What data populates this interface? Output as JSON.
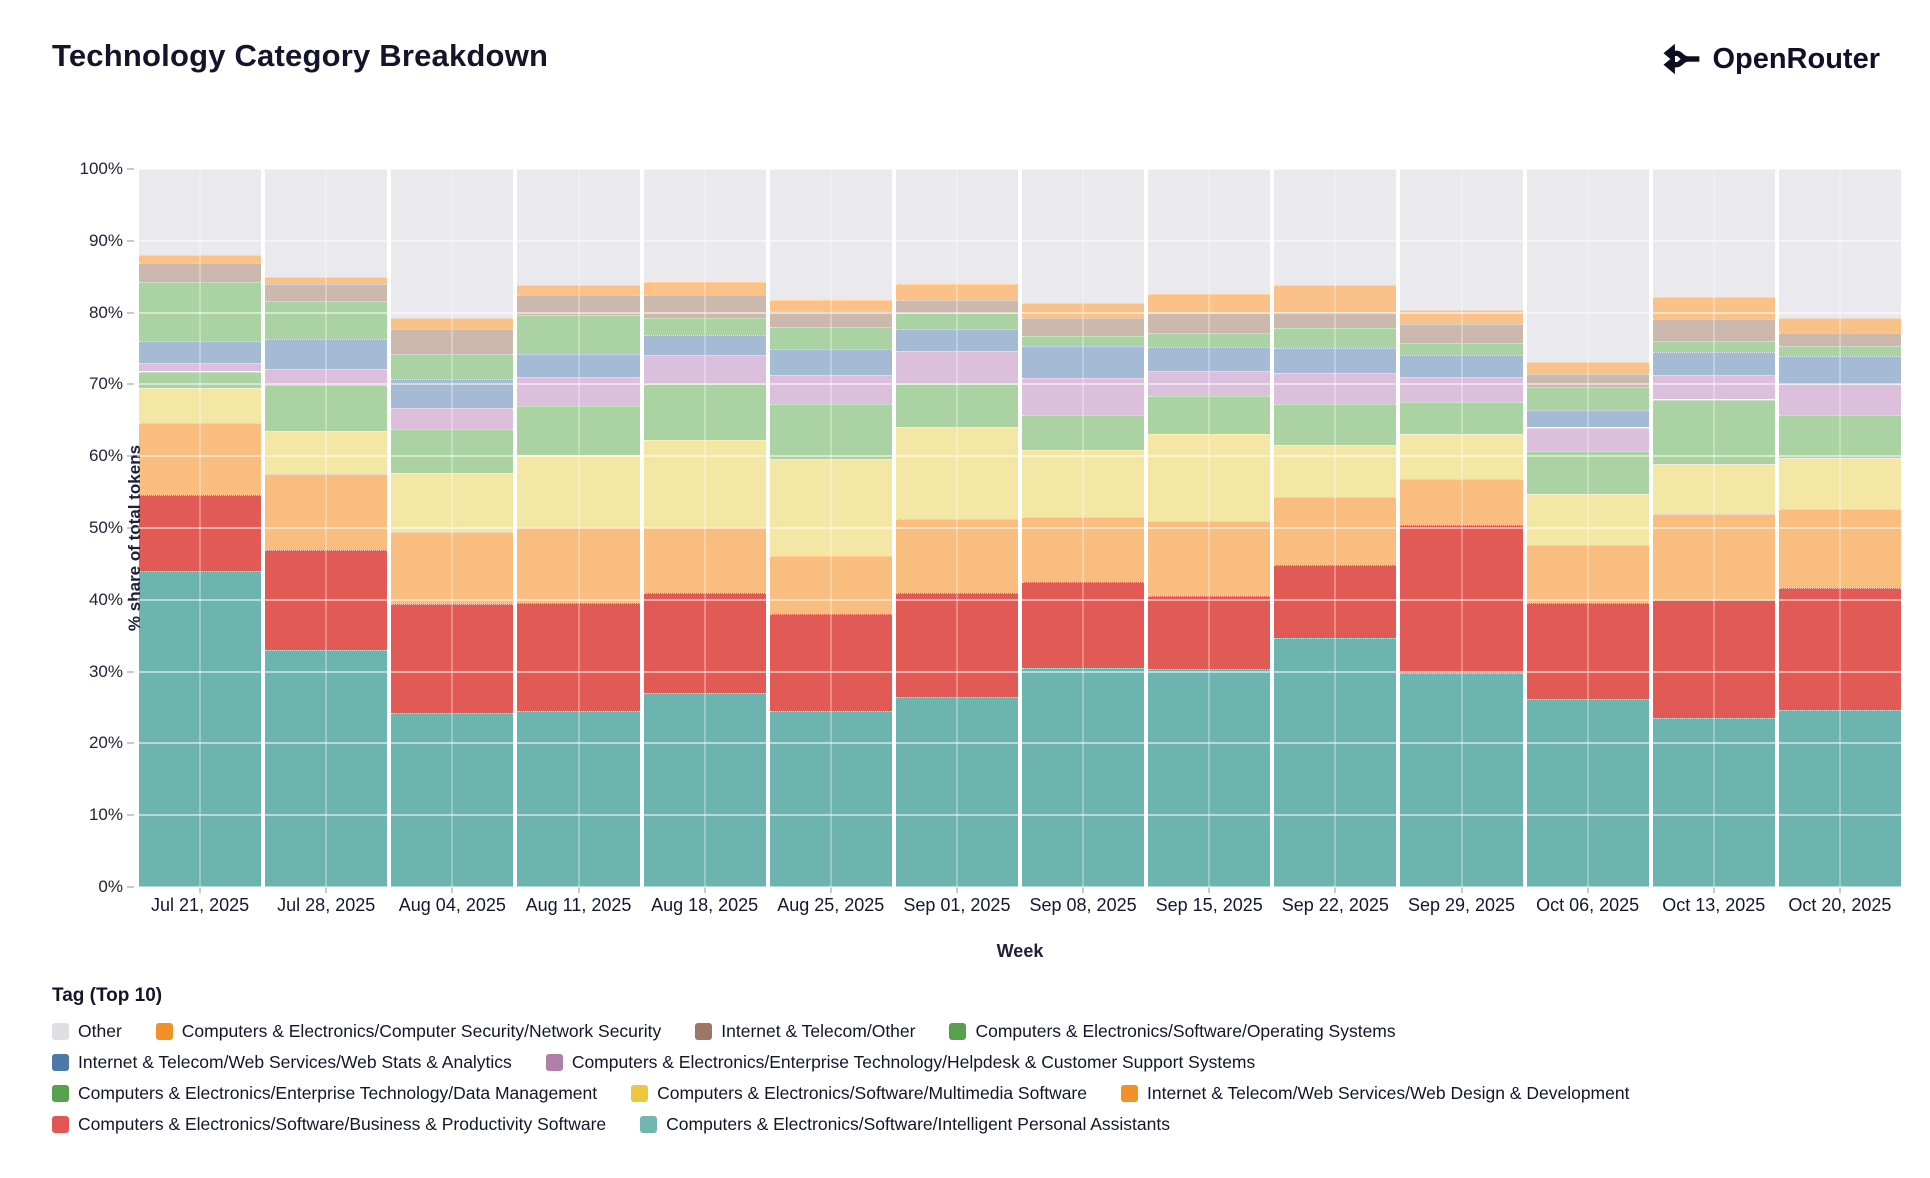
{
  "header": {
    "title": "Technology Category Breakdown",
    "brand": "OpenRouter",
    "brand_color": "#10102a"
  },
  "chart_data": {
    "type": "bar",
    "stacked": true,
    "units": "percent",
    "title": "Technology Category Breakdown",
    "xlabel": "Week",
    "ylabel": "% share of total tokens",
    "ylim": [
      0,
      100
    ],
    "ytick_labels": [
      "0%",
      "10%",
      "20%",
      "30%",
      "40%",
      "50%",
      "60%",
      "70%",
      "80%",
      "90%",
      "100%"
    ],
    "grid": true,
    "plot_background": "#ffffff",
    "categories": [
      "Jul 21, 2025",
      "Jul 28, 2025",
      "Aug 04, 2025",
      "Aug 11, 2025",
      "Aug 18, 2025",
      "Aug 25, 2025",
      "Sep 01, 2025",
      "Sep 08, 2025",
      "Sep 15, 2025",
      "Sep 22, 2025",
      "Sep 29, 2025",
      "Oct 06, 2025",
      "Oct 13, 2025",
      "Oct 20, 2025"
    ],
    "series": [
      {
        "key": "ipa",
        "name": "Computers & Electronics/Software/Intelligent Personal Assistants",
        "color": "#6db4b0",
        "swatch": "#72b6af",
        "pattern": false,
        "swatch_pattern": false,
        "values": [
          44.0,
          33.0,
          24.2,
          24.5,
          27.0,
          24.5,
          26.5,
          30.5,
          30.3,
          34.7,
          29.8,
          26.2,
          23.6,
          24.6
        ]
      },
      {
        "key": "bps",
        "name": "Computers & Electronics/Software/Business & Productivity Software",
        "color": "#e25a55",
        "swatch": "#e25756",
        "pattern": false,
        "swatch_pattern": false,
        "values": [
          10.6,
          14.0,
          15.2,
          15.0,
          14.0,
          13.5,
          14.5,
          12.0,
          10.3,
          10.2,
          20.6,
          13.4,
          16.4,
          17.1
        ]
      },
      {
        "key": "wdd",
        "name": "Internet & Telecom/Web Services/Web Design & Development",
        "color": "#f9bd80",
        "swatch": "#f2902a",
        "pattern": false,
        "swatch_pattern": false,
        "values": [
          10.0,
          10.5,
          10.0,
          10.7,
          9.2,
          8.1,
          10.3,
          9.0,
          10.4,
          9.4,
          6.4,
          8.0,
          11.9,
          10.9
        ]
      },
      {
        "key": "multimedia",
        "name": "Computers & Electronics/Software/Multimedia Software",
        "color": "#f4e6a4",
        "swatch": "#ecc83f",
        "pattern": false,
        "swatch_pattern": false,
        "values": [
          4.9,
          6.0,
          8.2,
          9.9,
          12.1,
          13.5,
          12.8,
          9.4,
          12.1,
          7.2,
          6.3,
          7.2,
          7.0,
          7.2
        ]
      },
      {
        "key": "dm",
        "name": "Computers & Electronics/Enterprise Technology/Data Management",
        "color": "#abd2a2",
        "swatch": "#57a14e",
        "pattern": false,
        "swatch_pattern": false,
        "values": [
          2.3,
          6.4,
          6.2,
          6.9,
          7.7,
          7.7,
          5.9,
          4.9,
          5.3,
          5.8,
          4.4,
          5.9,
          9.0,
          6.0
        ]
      },
      {
        "key": "helpdesk",
        "name": "Computers & Electronics/Enterprise Technology/Helpdesk & Customer Support Systems",
        "color": "#dcbedd",
        "swatch": "#b180a8",
        "pattern": true,
        "swatch_pattern": false,
        "values": [
          1.2,
          2.2,
          2.9,
          4.0,
          4.1,
          4.0,
          4.6,
          5.1,
          3.5,
          4.3,
          3.6,
          3.3,
          3.4,
          4.2
        ]
      },
      {
        "key": "webstats",
        "name": "Internet & Telecom/Web Services/Web Stats & Analytics",
        "color": "#a4bad5",
        "swatch": "#4e79a7",
        "pattern": false,
        "swatch_pattern": false,
        "values": [
          3.0,
          4.2,
          4.0,
          3.3,
          2.8,
          3.6,
          3.1,
          4.4,
          3.3,
          3.5,
          3.0,
          2.5,
          3.2,
          4.0
        ]
      },
      {
        "key": "os",
        "name": "Computers & Electronics/Software/Operating Systems",
        "color": "#abd2a2",
        "swatch": "#57a14e",
        "pattern": false,
        "swatch_pattern": false,
        "values": [
          8.2,
          5.3,
          3.5,
          5.3,
          2.4,
          3.1,
          2.3,
          1.5,
          2.0,
          2.8,
          1.7,
          3.1,
          1.6,
          1.3
        ]
      },
      {
        "key": "itother",
        "name": "Internet & Telecom/Other",
        "color": "#ccb8ac",
        "swatch": "#9d7666",
        "pattern": false,
        "swatch_pattern": true,
        "values": [
          2.7,
          2.4,
          3.5,
          2.9,
          3.1,
          2.2,
          1.8,
          2.5,
          2.8,
          2.2,
          2.6,
          1.9,
          3.0,
          1.9
        ]
      },
      {
        "key": "netsec",
        "name": "Computers & Electronics/Computer Security/Network Security",
        "color": "#fac288",
        "swatch": "#f2902a",
        "pattern": false,
        "swatch_pattern": false,
        "values": [
          1.1,
          0.9,
          1.6,
          1.4,
          1.9,
          1.6,
          2.2,
          2.0,
          2.6,
          3.7,
          1.9,
          1.6,
          3.1,
          2.0
        ]
      },
      {
        "key": "other",
        "name": "Other",
        "color": "#e9e9ee",
        "swatch": "#dfdfe3",
        "pattern": false,
        "swatch_pattern": false,
        "values": [
          12.0,
          15.1,
          20.7,
          16.1,
          15.7,
          18.2,
          16.0,
          18.7,
          17.4,
          16.2,
          19.7,
          26.9,
          17.8,
          20.8
        ]
      }
    ]
  },
  "legend": {
    "title": "Tag (Top 10)",
    "rows": [
      [
        "other",
        "netsec",
        "itother",
        "os"
      ],
      [
        "webstats",
        "helpdesk"
      ],
      [
        "dm",
        "multimedia",
        "wdd"
      ],
      [
        "bps",
        "ipa"
      ]
    ]
  }
}
